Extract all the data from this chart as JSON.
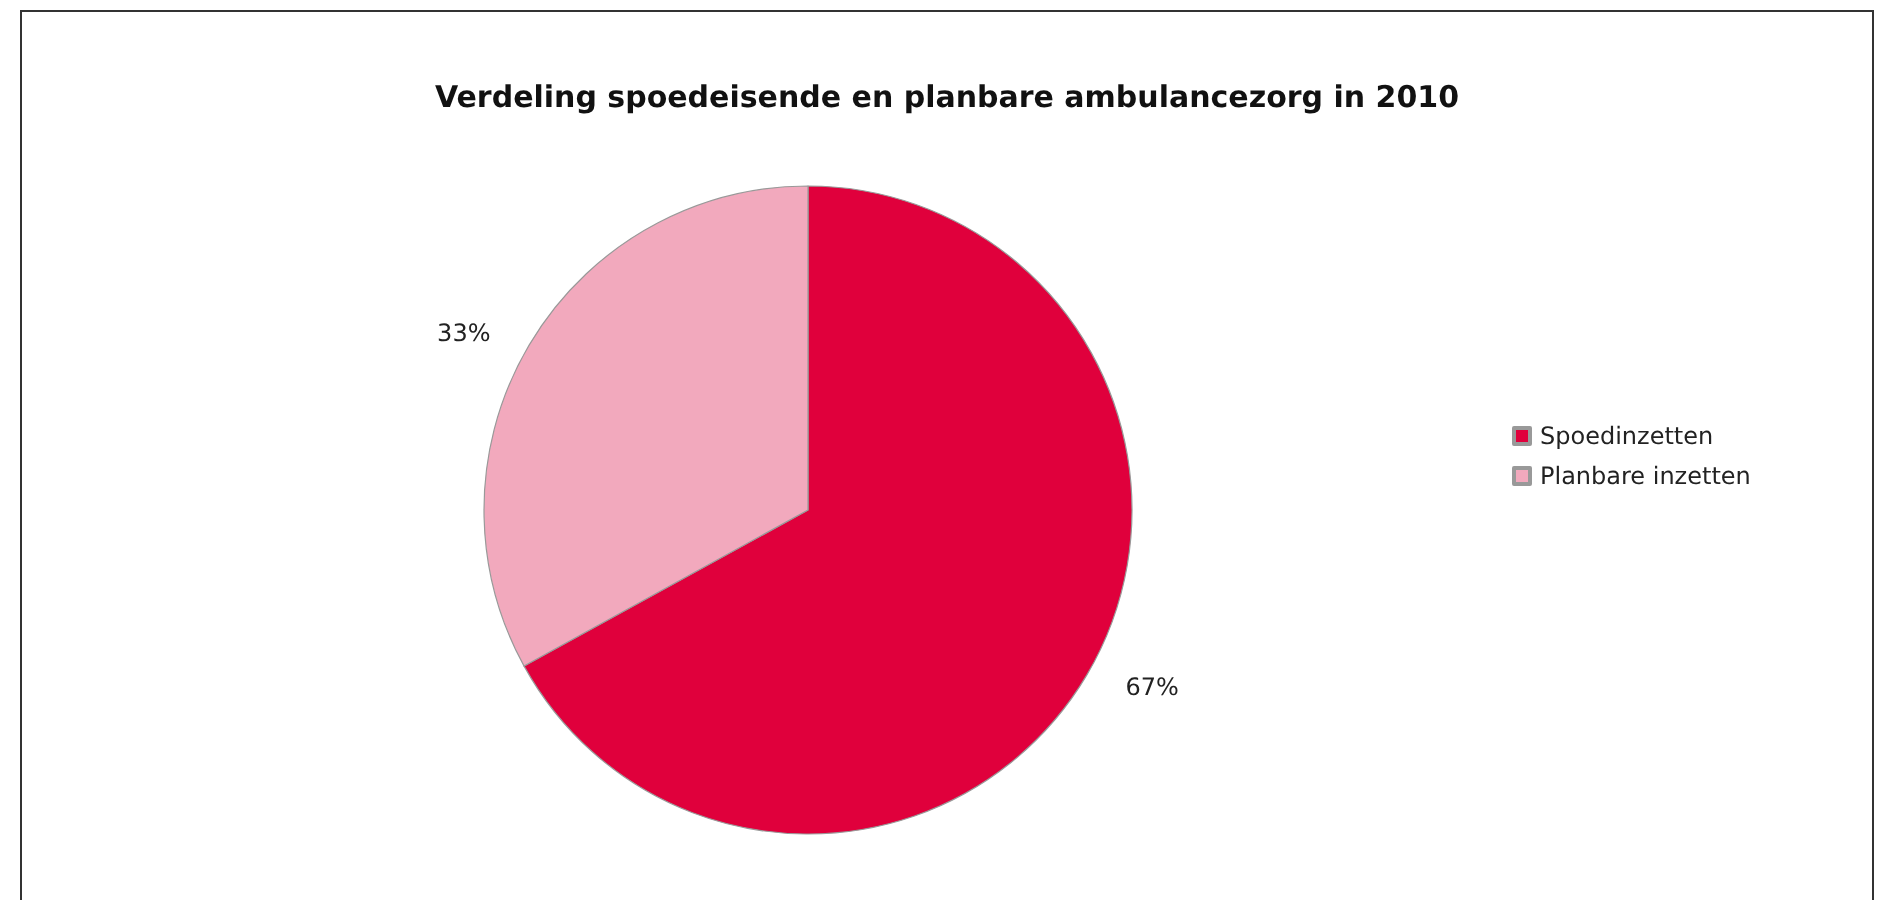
{
  "chart_data": {
    "type": "pie",
    "title": "Verdeling spoedeisende en planbare ambulancezorg in 2010",
    "categories": [
      "Spoedinzetten",
      "Planbare inzetten"
    ],
    "values": [
      67,
      33
    ],
    "value_labels": [
      "67%",
      "33%"
    ],
    "colors": [
      "#e0003c",
      "#f2a9bd"
    ],
    "legend": "right"
  }
}
